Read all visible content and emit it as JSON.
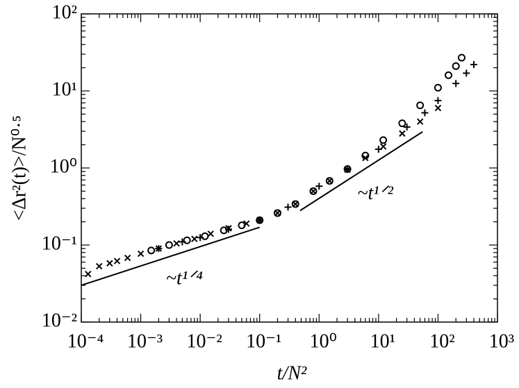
{
  "chart_data": {
    "type": "scatter",
    "xlabel": "t/N²",
    "ylabel": "<Δr²(t)>/N⁰·⁵",
    "log_x": true,
    "log_y": true,
    "xlim": [
      0.0001,
      1000
    ],
    "ylim": [
      0.01,
      100
    ],
    "xticks": [
      {
        "value": 0.0001,
        "label": "10⁻⁴"
      },
      {
        "value": 0.001,
        "label": "10⁻³"
      },
      {
        "value": 0.01,
        "label": "10⁻²"
      },
      {
        "value": 0.1,
        "label": "10⁻¹"
      },
      {
        "value": 1,
        "label": "10⁰"
      },
      {
        "value": 10,
        "label": "10¹"
      },
      {
        "value": 100,
        "label": "10²"
      },
      {
        "value": 1000,
        "label": "10³"
      }
    ],
    "yticks": [
      {
        "value": 0.01,
        "label": "10⁻²"
      },
      {
        "value": 0.1,
        "label": "10⁻¹"
      },
      {
        "value": 1,
        "label": "10⁰"
      },
      {
        "value": 10,
        "label": "10¹"
      },
      {
        "value": 100,
        "label": "10²"
      }
    ],
    "series": [
      {
        "marker": "cross",
        "color": "#000000",
        "x": [
          0.00013,
          0.0002,
          0.0003,
          0.0004,
          0.0006,
          0.001,
          0.002,
          0.004,
          0.008,
          0.015,
          0.03,
          0.06,
          0.1,
          0.2,
          0.4,
          0.8,
          1.5,
          3,
          6,
          12,
          25,
          50,
          100
        ],
        "values": [
          0.042,
          0.053,
          0.058,
          0.062,
          0.068,
          0.077,
          0.09,
          0.105,
          0.12,
          0.14,
          0.165,
          0.19,
          0.21,
          0.26,
          0.34,
          0.5,
          0.68,
          0.95,
          1.35,
          1.9,
          2.8,
          4,
          6
        ]
      },
      {
        "marker": "circle",
        "color": "#000000",
        "x": [
          0.0015,
          0.003,
          0.006,
          0.012,
          0.025,
          0.05,
          0.1,
          0.2,
          0.4,
          0.8,
          1.5,
          3,
          6,
          12,
          25,
          50,
          100,
          150,
          200,
          250
        ],
        "values": [
          0.085,
          0.1,
          0.115,
          0.13,
          0.155,
          0.18,
          0.21,
          0.26,
          0.34,
          0.5,
          0.68,
          0.97,
          1.45,
          2.3,
          3.8,
          6.5,
          11,
          16,
          21,
          27
        ]
      },
      {
        "marker": "plus",
        "color": "#000000",
        "x": [
          0.002,
          0.005,
          0.01,
          0.03,
          0.1,
          0.3,
          1,
          3,
          10,
          30,
          60,
          100,
          200,
          300,
          400
        ],
        "values": [
          0.09,
          0.11,
          0.125,
          0.16,
          0.21,
          0.31,
          0.58,
          0.96,
          1.75,
          3.4,
          5.2,
          7.5,
          12.5,
          17,
          22
        ]
      }
    ],
    "reference_lines": [
      {
        "x": [
          0.0001,
          0.1
        ],
        "y": [
          0.03,
          0.17
        ],
        "label": "~t¹ᐟ⁴"
      },
      {
        "x": [
          0.48,
          55
        ],
        "y": [
          0.28,
          2.95
        ],
        "label": "~t¹ᐟ²"
      }
    ]
  }
}
